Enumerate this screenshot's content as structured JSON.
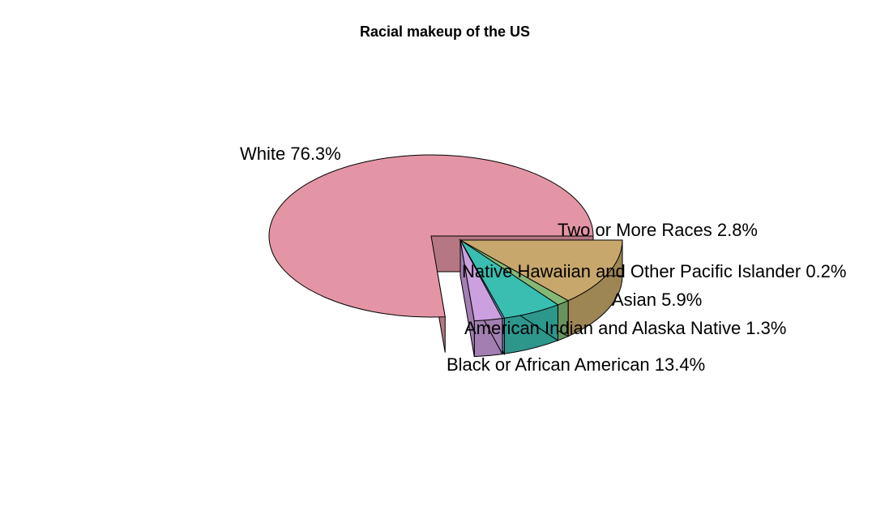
{
  "chart_data": {
    "type": "pie",
    "title": "Racial makeup of the US",
    "three_d": true,
    "slices": [
      {
        "label": "White",
        "value": 76.3,
        "display": "White 76.3%",
        "color": "#E495A5",
        "side_color": "#B57782",
        "exploded": false
      },
      {
        "label": "Black or African American",
        "value": 13.4,
        "display": "Black or African American 13.4%",
        "color": "#C7A76C",
        "side_color": "#9E8554",
        "exploded": true
      },
      {
        "label": "American Indian and Alaska Native",
        "value": 1.3,
        "display": "American Indian and Alaska Native 1.3%",
        "color": "#86B875",
        "side_color": "#6A925D",
        "exploded": true
      },
      {
        "label": "Asian",
        "value": 5.9,
        "display": "Asian 5.9%",
        "color": "#39BEB1",
        "side_color": "#2D978C",
        "exploded": true
      },
      {
        "label": "Native Hawaiian and Other Pacific Islander",
        "value": 0.2,
        "display": "Native Hawaiian and Other Pacific Islander 0.2%",
        "color": "#7DB0DD",
        "side_color": "#628CB0",
        "exploded": true
      },
      {
        "label": "Two or More Races",
        "value": 2.8,
        "display": "Two or More Races 2.8%",
        "color": "#CC9FDF",
        "side_color": "#A27EB1",
        "exploded": true
      }
    ]
  }
}
